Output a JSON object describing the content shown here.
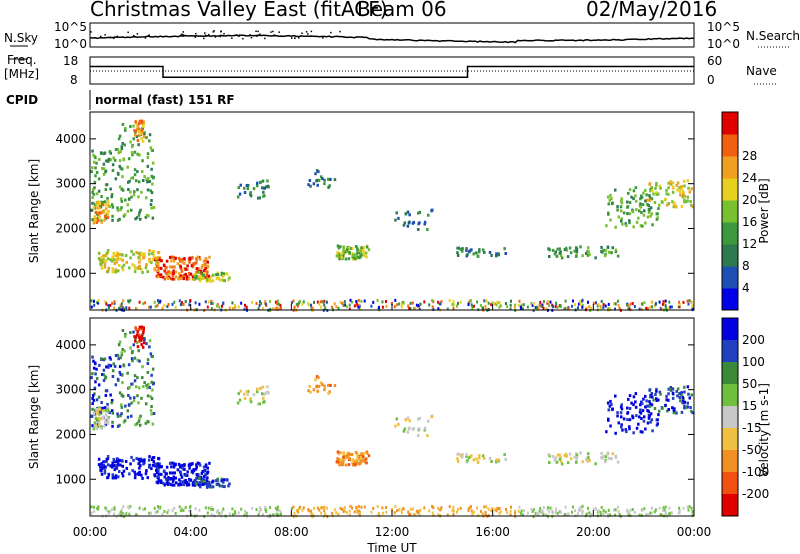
{
  "chart_data": {
    "type": "heatmap",
    "header": {
      "station": "Christmas Valley East (fitACF)",
      "beam": "Beam 06",
      "date": "02/May/2016",
      "cpid_label": "CPID",
      "cpid_value": "normal (fast) 151 RF"
    },
    "panels": {
      "nsky": {
        "left_label": "N.Sky",
        "left_ticks": [
          "10^5",
          "10^0"
        ],
        "right_label": "N.Search",
        "right_ticks": [
          "10^5",
          "10^0"
        ]
      },
      "freq": {
        "left_label": [
          "Freq.",
          "[MHz]"
        ],
        "left_ticks": [
          "18",
          "8"
        ],
        "right_label": "Nave",
        "right_ticks": [
          "60",
          "0"
        ],
        "series": {
          "hours": [
            0,
            2.9,
            2.9,
            15.0,
            15.0,
            24
          ],
          "mhz": [
            14.5,
            14.5,
            10.5,
            10.5,
            14.5,
            14.5
          ]
        }
      }
    },
    "x_axis": {
      "label": "Time UT",
      "range_hours": [
        0,
        24
      ],
      "ticks": [
        "00:00",
        "04:00",
        "08:00",
        "12:00",
        "16:00",
        "20:00",
        "00:00"
      ]
    },
    "y_axis": {
      "label": "Slant Range [km]",
      "range_km": [
        180,
        4600
      ],
      "ticks": [
        1000,
        2000,
        3000,
        4000
      ]
    },
    "power": {
      "colorbar_label": "Power [dB]",
      "ticks": [
        4,
        8,
        12,
        16,
        20,
        24,
        28
      ],
      "colors": [
        "#0000e8",
        "#1e50b4",
        "#2e7a50",
        "#3c9a3c",
        "#78c030",
        "#e8d020",
        "#f0a020",
        "#f06010",
        "#e00000"
      ]
    },
    "velocity": {
      "colorbar_label": "Velocity [m s-1]",
      "ticks": [
        200,
        100,
        50,
        15,
        -15,
        -50,
        -100,
        -200
      ],
      "colors": [
        "#0000e0",
        "#2040c0",
        "#3a8a3a",
        "#70c040",
        "#c8c8c8",
        "#f0c040",
        "#f09020",
        "#f05010",
        "#e00000"
      ]
    }
  }
}
